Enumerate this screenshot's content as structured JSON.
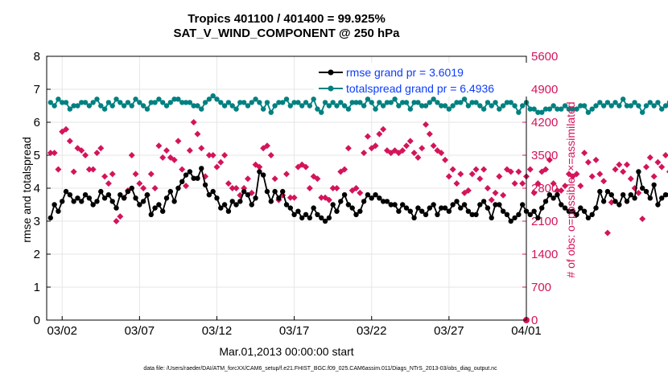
{
  "chart_data": {
    "type": "line",
    "title_line1": "Tropics 401100 / 401400 = 99.925%",
    "title_line2": "SAT_V_WIND_COMPONENT @ 250 hPa",
    "xlabel": "Mar.01,2013 00:00:00 start",
    "ylabel_left": "rmse and totalspread",
    "ylabel_right": "# of obs: o=possible; ×=assimilated",
    "x_tick_labels": [
      "03/02",
      "03/07",
      "03/12",
      "03/17",
      "03/22",
      "03/27",
      "04/01"
    ],
    "x_tick_days": [
      1,
      6,
      11,
      16,
      21,
      26,
      31
    ],
    "xlim_days": [
      0,
      31
    ],
    "ylim_left": [
      0,
      8
    ],
    "y_ticks_left": [
      "0",
      "1",
      "2",
      "3",
      "4",
      "5",
      "6",
      "7",
      "8"
    ],
    "ylim_right": [
      0,
      5600
    ],
    "y_ticks_right": [
      "0",
      "700",
      "1400",
      "2100",
      "2800",
      "3500",
      "4200",
      "4900",
      "5600"
    ],
    "grid": true,
    "legend_position": "top-right",
    "colors": {
      "rmse": "#000000",
      "spread": "#008080",
      "obs": "#d4145a",
      "legend_text": "#0a3cff",
      "right_axis": "#d4145a"
    },
    "series": [
      {
        "name": "rmse grand pr = 3.6019",
        "axis": "left",
        "start_day": 0.25,
        "step_days": 0.25,
        "values": [
          3.1,
          3.5,
          3.3,
          3.6,
          3.9,
          3.8,
          3.6,
          3.7,
          3.6,
          3.8,
          3.7,
          3.5,
          3.6,
          3.9,
          3.7,
          3.8,
          3.6,
          3.4,
          3.8,
          3.7,
          3.9,
          4.0,
          3.7,
          3.5,
          3.6,
          3.8,
          3.2,
          3.4,
          3.5,
          3.3,
          3.7,
          3.9,
          3.6,
          4.0,
          4.2,
          4.4,
          4.5,
          4.3,
          4.3,
          4.6,
          4.1,
          3.8,
          3.9,
          3.7,
          3.4,
          3.5,
          3.3,
          3.6,
          3.5,
          3.6,
          3.9,
          3.8,
          3.5,
          3.7,
          4.5,
          4.4,
          3.9,
          3.6,
          3.9,
          3.7,
          3.9,
          3.5,
          3.4,
          3.2,
          3.3,
          3.1,
          3.2,
          3.1,
          3.4,
          3.2,
          3.1,
          3.0,
          3.1,
          3.5,
          3.3,
          3.6,
          3.8,
          3.5,
          3.4,
          3.2,
          3.3,
          3.6,
          3.8,
          3.7,
          3.8,
          3.7,
          3.6,
          3.6,
          3.5,
          3.5,
          3.3,
          3.5,
          3.4,
          3.3,
          3.1,
          3.4,
          3.3,
          3.2,
          3.4,
          3.5,
          3.2,
          3.4,
          3.4,
          3.3,
          3.5,
          3.6,
          3.4,
          3.5,
          3.3,
          3.2,
          3.2,
          3.5,
          3.6,
          3.4,
          3.1,
          3.5,
          3.5,
          3.3,
          3.2,
          3.0,
          3.1,
          3.2,
          3.5,
          3.3,
          3.2,
          3.3,
          3.1,
          3.4,
          3.6,
          3.8,
          3.7,
          3.8,
          3.5,
          3.4,
          3.3,
          3.3,
          3.2,
          3.4,
          3.3,
          3.1,
          3.2,
          3.4,
          3.9,
          3.6,
          3.9,
          3.8,
          3.6,
          3.5,
          3.8,
          3.6,
          3.8,
          3.7,
          4.5,
          4.0,
          3.9,
          3.7,
          4.1,
          3.5,
          3.7,
          3.8,
          3.8,
          3.9,
          3.7,
          3.5,
          3.9,
          3.7,
          3.7,
          3.6,
          3.4,
          3.8,
          3.6
        ]
      },
      {
        "name": "totalspread grand pr = 6.4936",
        "axis": "left",
        "start_day": 0.25,
        "step_days": 0.25,
        "values": [
          6.6,
          6.5,
          6.7,
          6.6,
          6.6,
          6.4,
          6.5,
          6.5,
          6.6,
          6.6,
          6.5,
          6.6,
          6.7,
          6.5,
          6.4,
          6.6,
          6.5,
          6.7,
          6.6,
          6.5,
          6.6,
          6.5,
          6.7,
          6.6,
          6.5,
          6.4,
          6.6,
          6.6,
          6.7,
          6.6,
          6.5,
          6.6,
          6.7,
          6.7,
          6.6,
          6.6,
          6.6,
          6.5,
          6.5,
          6.4,
          6.6,
          6.7,
          6.8,
          6.7,
          6.6,
          6.5,
          6.6,
          6.5,
          6.4,
          6.6,
          6.6,
          6.5,
          6.6,
          6.7,
          6.6,
          6.4,
          6.6,
          6.3,
          6.5,
          6.6,
          6.6,
          6.7,
          6.5,
          6.6,
          6.6,
          6.5,
          6.6,
          6.5,
          6.7,
          6.4,
          6.3,
          6.6,
          6.5,
          6.6,
          6.5,
          6.6,
          6.5,
          6.4,
          6.6,
          6.6,
          6.6,
          6.5,
          6.7,
          6.6,
          6.4,
          6.6,
          6.5,
          6.6,
          6.6,
          6.7,
          6.5,
          6.6,
          6.6,
          6.4,
          6.6,
          6.6,
          6.5,
          6.5,
          6.6,
          6.7,
          6.6,
          6.5,
          6.5,
          6.4,
          6.5,
          6.6,
          6.6,
          6.7,
          6.5,
          6.6,
          6.6,
          6.5,
          6.4,
          6.6,
          6.5,
          6.6,
          6.4,
          6.5,
          6.6,
          6.6,
          6.5,
          6.3,
          6.5,
          6.6,
          6.4,
          6.4,
          6.3,
          6.3,
          6.4,
          6.4,
          6.5,
          6.4,
          6.4,
          6.5,
          6.4,
          6.4,
          6.4,
          6.5,
          6.5,
          6.3,
          6.4,
          6.5,
          6.6,
          6.5,
          6.6,
          6.5,
          6.6,
          6.5,
          6.7,
          6.5,
          6.5,
          6.6,
          6.5,
          6.3,
          6.5,
          6.6,
          6.5,
          6.6,
          6.4,
          6.5,
          6.6,
          6.5,
          6.5,
          6.5,
          6.4,
          6.6,
          6.6
        ]
      },
      {
        "name": "obs_count",
        "axis": "right",
        "start_day": 0.25,
        "step_days": 0.25,
        "values": [
          3550,
          3550,
          3200,
          4000,
          4050,
          3800,
          3150,
          3650,
          3600,
          3500,
          3200,
          3200,
          3550,
          3650,
          3050,
          2900,
          3100,
          2100,
          2200,
          2600,
          2750,
          3500,
          3100,
          2900,
          2800,
          2650,
          3100,
          2800,
          3700,
          3450,
          3600,
          3450,
          3400,
          3800,
          3200,
          2850,
          3600,
          4200,
          3950,
          3650,
          3050,
          3500,
          3500,
          3250,
          3350,
          3500,
          2900,
          2800,
          2800,
          2650,
          2800,
          3000,
          2700,
          3300,
          3250,
          3650,
          3700,
          3500,
          3000,
          2550,
          2650,
          3100,
          2600,
          2600,
          3250,
          3300,
          3250,
          2800,
          3050,
          3000,
          2600,
          2600,
          2550,
          2800,
          2800,
          3150,
          3200,
          3650,
          2750,
          2800,
          2700,
          3550,
          3900,
          3650,
          3700,
          3950,
          4050,
          3600,
          3550,
          3600,
          3550,
          3600,
          3700,
          3800,
          3550,
          3450,
          3650,
          4150,
          3950,
          3700,
          3600,
          3550,
          3400,
          3050,
          3200,
          2900,
          3100,
          2700,
          2750,
          3100,
          3200,
          3000,
          3200,
          2800,
          2550,
          2700,
          3050,
          2650,
          3200,
          3150,
          2900,
          3150,
          2900,
          3050,
          3200,
          2700,
          2900,
          3150,
          3200,
          3400,
          2900,
          2750,
          2750,
          2850,
          3100,
          3050,
          3100,
          2850,
          3550,
          3350,
          3050,
          3400,
          3100,
          2950,
          1850,
          2500,
          3200,
          3300,
          3150,
          3300,
          3000,
          2800,
          2700,
          2150,
          3250,
          3450,
          3050,
          3350,
          3250,
          3500,
          3150,
          2650,
          3350,
          3250,
          3200,
          3500,
          3150,
          3200,
          3450,
          3450
        ]
      }
    ],
    "terminal_point": {
      "x_day": 31,
      "value": 0
    },
    "legend_markers": {
      "rmse": "filled-circle",
      "spread": "filled-circle"
    }
  },
  "footer": "data file: /Users/raeder/DAI/ATM_forcXX/CAM6_setup/f.e21.FHIST_BGC.f09_025.CAM6assim.011/Diags_NTrS_2013-03/obs_diag_output.nc"
}
